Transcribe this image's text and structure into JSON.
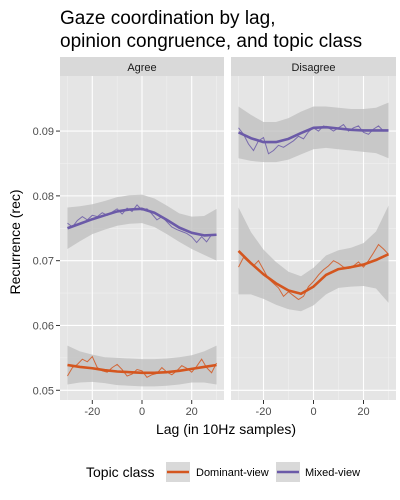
{
  "chart_data": {
    "type": "line",
    "title": [
      "Gaze coordination by lag,",
      "opinion congruence, and topic class"
    ],
    "xlabel": "Lag (in 10Hz samples)",
    "ylabel": "Recurrence (rec)",
    "xlim": [
      -33,
      33
    ],
    "ylim": [
      0.0485,
      0.0985
    ],
    "x_ticks": [
      -20,
      0,
      20
    ],
    "y_ticks": [
      0.05,
      0.06,
      0.07,
      0.08,
      0.09
    ],
    "y_tick_labels": [
      "0.05",
      "0.06",
      "0.07",
      "0.08",
      "0.09"
    ],
    "grid": true,
    "legend": {
      "title": "Topic class",
      "position": "bottom",
      "entries": [
        "Dominant-view",
        "Mixed-view"
      ]
    },
    "colors": {
      "Dominant-view": "#d4561f",
      "Mixed-view": "#6b5aa8",
      "panel_bg": "#e5e5e5",
      "ribbon": "#bdbdbd"
    },
    "panels": [
      {
        "label": "Agree",
        "series": [
          {
            "name": "Mixed-view",
            "raw": {
              "x": [
                -30,
                -28,
                -26,
                -24,
                -22,
                -20,
                -18,
                -16,
                -14,
                -12,
                -10,
                -8,
                -6,
                -4,
                -2,
                0,
                2,
                4,
                6,
                8,
                10,
                12,
                14,
                16,
                18,
                20,
                22,
                24,
                26,
                28,
                30
              ],
              "y": [
                0.0758,
                0.0752,
                0.0762,
                0.0768,
                0.0763,
                0.077,
                0.0768,
                0.0774,
                0.077,
                0.0775,
                0.078,
                0.0772,
                0.0781,
                0.0776,
                0.0786,
                0.0778,
                0.078,
                0.0772,
                0.0763,
                0.0768,
                0.076,
                0.0752,
                0.0748,
                0.0745,
                0.0742,
                0.0737,
                0.0728,
                0.0737,
                0.0729,
                0.074,
                0.074
              ]
            },
            "smooth": {
              "x": [
                -30,
                -25,
                -20,
                -15,
                -10,
                -5,
                0,
                5,
                10,
                15,
                20,
                25,
                30
              ],
              "y": [
                0.075,
                0.0757,
                0.0764,
                0.077,
                0.0776,
                0.0779,
                0.078,
                0.0774,
                0.0763,
                0.0751,
                0.0743,
                0.0739,
                0.074
              ]
            },
            "band": {
              "x": [
                -30,
                -25,
                -20,
                -15,
                -10,
                -5,
                0,
                5,
                10,
                15,
                20,
                25,
                30
              ],
              "lower": [
                0.0718,
                0.073,
                0.0741,
                0.0748,
                0.0754,
                0.0757,
                0.0758,
                0.0752,
                0.0741,
                0.0729,
                0.0718,
                0.0709,
                0.07
              ],
              "upper": [
                0.0782,
                0.0784,
                0.0787,
                0.0792,
                0.0798,
                0.0801,
                0.0802,
                0.0796,
                0.0785,
                0.0773,
                0.0768,
                0.0769,
                0.078
              ]
            }
          },
          {
            "name": "Dominant-view",
            "raw": {
              "x": [
                -30,
                -28,
                -26,
                -24,
                -22,
                -20,
                -18,
                -16,
                -14,
                -12,
                -10,
                -8,
                -6,
                -4,
                -2,
                0,
                2,
                4,
                6,
                8,
                10,
                12,
                14,
                16,
                18,
                20,
                22,
                24,
                26,
                28,
                30
              ],
              "y": [
                0.0522,
                0.0535,
                0.054,
                0.0548,
                0.0544,
                0.0552,
                0.0535,
                0.053,
                0.0528,
                0.0535,
                0.054,
                0.0532,
                0.0522,
                0.0525,
                0.0532,
                0.053,
                0.052,
                0.0524,
                0.0526,
                0.0535,
                0.0528,
                0.0524,
                0.053,
                0.0538,
                0.0534,
                0.0528,
                0.0537,
                0.0548,
                0.0535,
                0.0527,
                0.0542
              ]
            },
            "smooth": {
              "x": [
                -30,
                -25,
                -20,
                -15,
                -10,
                -5,
                0,
                5,
                10,
                15,
                20,
                25,
                30
              ],
              "y": [
                0.0539,
                0.0536,
                0.0534,
                0.0531,
                0.0529,
                0.0528,
                0.0527,
                0.0527,
                0.0528,
                0.053,
                0.0533,
                0.0536,
                0.0539
              ]
            },
            "band": {
              "x": [
                -30,
                -25,
                -20,
                -15,
                -10,
                -5,
                0,
                5,
                10,
                15,
                20,
                25,
                30
              ],
              "lower": [
                0.0509,
                0.0512,
                0.0513,
                0.0511,
                0.0508,
                0.0507,
                0.0506,
                0.0506,
                0.0507,
                0.0509,
                0.0512,
                0.0512,
                0.0509
              ],
              "upper": [
                0.0569,
                0.056,
                0.0555,
                0.0551,
                0.055,
                0.0549,
                0.0548,
                0.0548,
                0.0549,
                0.0551,
                0.0554,
                0.056,
                0.0569
              ]
            }
          }
        ]
      },
      {
        "label": "Disagree",
        "series": [
          {
            "name": "Mixed-view",
            "raw": {
              "x": [
                -30,
                -28,
                -26,
                -24,
                -22,
                -20,
                -18,
                -16,
                -14,
                -12,
                -10,
                -8,
                -6,
                -4,
                -2,
                0,
                2,
                4,
                6,
                8,
                10,
                12,
                14,
                16,
                18,
                20,
                22,
                24,
                26,
                28,
                30
              ],
              "y": [
                0.0905,
                0.0895,
                0.088,
                0.087,
                0.0885,
                0.089,
                0.0865,
                0.087,
                0.0878,
                0.0875,
                0.088,
                0.0885,
                0.0892,
                0.0888,
                0.0899,
                0.0905,
                0.09,
                0.0908,
                0.0905,
                0.09,
                0.0905,
                0.091,
                0.09,
                0.0905,
                0.0908,
                0.0898,
                0.0895,
                0.0903,
                0.0908,
                0.09,
                0.0902
              ]
            },
            "smooth": {
              "x": [
                -30,
                -25,
                -20,
                -15,
                -10,
                -5,
                0,
                5,
                10,
                15,
                20,
                25,
                30
              ],
              "y": [
                0.0898,
                0.0889,
                0.0883,
                0.0883,
                0.0888,
                0.0897,
                0.0905,
                0.0906,
                0.0904,
                0.0902,
                0.0901,
                0.0901,
                0.0901
              ]
            },
            "band": {
              "x": [
                -30,
                -25,
                -20,
                -15,
                -10,
                -5,
                0,
                5,
                10,
                15,
                20,
                25,
                30
              ],
              "lower": [
                0.0858,
                0.0854,
                0.0852,
                0.0852,
                0.0856,
                0.0864,
                0.0872,
                0.0874,
                0.0872,
                0.087,
                0.0868,
                0.0866,
                0.0858
              ],
              "upper": [
                0.0938,
                0.0925,
                0.0914,
                0.0914,
                0.092,
                0.093,
                0.0938,
                0.0938,
                0.0936,
                0.0934,
                0.0934,
                0.0936,
                0.0944
              ]
            }
          },
          {
            "name": "Dominant-view",
            "raw": {
              "x": [
                -30,
                -28,
                -26,
                -24,
                -22,
                -20,
                -18,
                -16,
                -14,
                -12,
                -10,
                -8,
                -6,
                -4,
                -2,
                0,
                2,
                4,
                6,
                8,
                10,
                12,
                14,
                16,
                18,
                20,
                22,
                24,
                26,
                28,
                30
              ],
              "y": [
                0.069,
                0.0705,
                0.0698,
                0.0692,
                0.07,
                0.0686,
                0.0672,
                0.0665,
                0.0658,
                0.0645,
                0.0652,
                0.0646,
                0.064,
                0.0645,
                0.066,
                0.0668,
                0.0678,
                0.0686,
                0.0692,
                0.07,
                0.0696,
                0.069,
                0.0688,
                0.0692,
                0.0698,
                0.069,
                0.07,
                0.0712,
                0.0725,
                0.0718,
                0.071
              ]
            },
            "smooth": {
              "x": [
                -30,
                -25,
                -20,
                -15,
                -10,
                -5,
                0,
                5,
                10,
                15,
                20,
                25,
                30
              ],
              "y": [
                0.0715,
                0.0696,
                0.0679,
                0.0665,
                0.0654,
                0.0649,
                0.066,
                0.0678,
                0.0687,
                0.069,
                0.0694,
                0.0701,
                0.071
              ]
            },
            "band": {
              "x": [
                -30,
                -25,
                -20,
                -15,
                -10,
                -5,
                0,
                5,
                10,
                15,
                20,
                25,
                30
              ],
              "lower": [
                0.0648,
                0.0648,
                0.0641,
                0.0632,
                0.0625,
                0.0622,
                0.0631,
                0.0648,
                0.0658,
                0.066,
                0.0661,
                0.0657,
                0.0635
              ],
              "upper": [
                0.0782,
                0.0744,
                0.0717,
                0.0698,
                0.0683,
                0.0676,
                0.0689,
                0.0708,
                0.0716,
                0.072,
                0.0727,
                0.0745,
                0.0785
              ]
            }
          }
        ]
      }
    ]
  }
}
